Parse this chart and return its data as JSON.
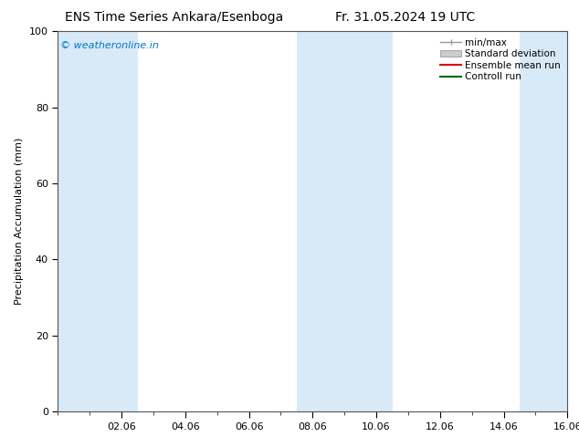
{
  "title_left": "ENS Time Series Ankara/Esenboga",
  "title_right": "Fr. 31.05.2024 19 UTC",
  "ylabel": "Precipitation Accumulation (mm)",
  "watermark": "© weatheronline.in",
  "watermark_color": "#0077cc",
  "ylim": [
    0,
    100
  ],
  "yticks": [
    0,
    20,
    40,
    60,
    80,
    100
  ],
  "xlim": [
    0,
    16
  ],
  "xtick_labels": [
    "02.06",
    "04.06",
    "06.06",
    "08.06",
    "10.06",
    "12.06",
    "14.06",
    "16.06"
  ],
  "xtick_positions": [
    2,
    4,
    6,
    8,
    10,
    12,
    14,
    16
  ],
  "shaded_bands": [
    {
      "x_start": 0,
      "x_end": 2.5
    },
    {
      "x_start": 7.5,
      "x_end": 10.5
    },
    {
      "x_start": 14.5,
      "x_end": 16
    }
  ],
  "shade_color": "#d8eaf8",
  "shade_alpha": 1.0,
  "legend_labels": [
    "min/max",
    "Standard deviation",
    "Ensemble mean run",
    "Controll run"
  ],
  "minmax_color": "#999999",
  "std_facecolor": "#cccccc",
  "std_edgecolor": "#aaaaaa",
  "ensemble_color": "#dd0000",
  "control_color": "#006600",
  "background_color": "#ffffff",
  "plot_bg_color": "#ffffff",
  "spine_color": "#555555",
  "title_fontsize": 10,
  "axis_label_fontsize": 8,
  "tick_fontsize": 8,
  "legend_fontsize": 7.5,
  "watermark_fontsize": 8
}
